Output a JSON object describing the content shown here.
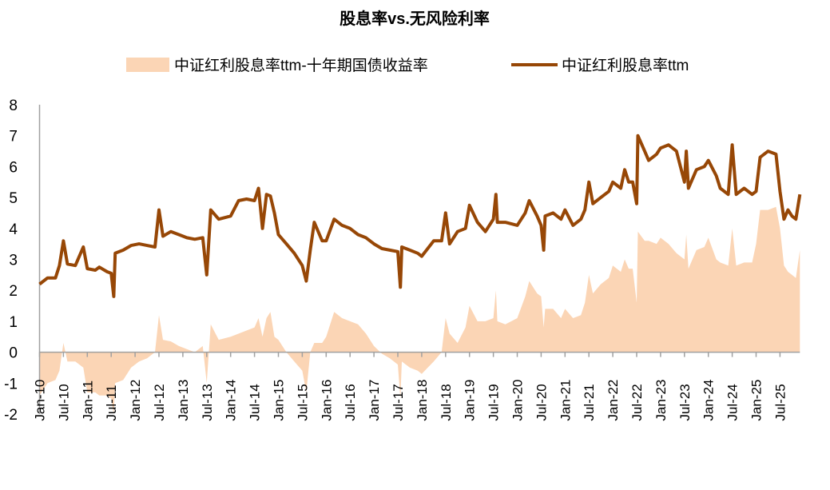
{
  "chart_data": {
    "type": "line",
    "title": "股息率vs.无风险利率",
    "legend_position": "top",
    "grid": false,
    "ylim": [
      -2,
      8
    ],
    "yticks": [
      "-2",
      "-1",
      "0",
      "1",
      "2",
      "3",
      "4",
      "5",
      "6",
      "7",
      "8"
    ],
    "xticks": [
      "Jan-10",
      "Jul-10",
      "Jan-11",
      "Jul-11",
      "Jan-12",
      "Jul-12",
      "Jan-13",
      "Jul-13",
      "Jan-14",
      "Jul-14",
      "Jan-15",
      "Jul-15",
      "Jan-16",
      "Jul-16",
      "Jan-17",
      "Jul-17",
      "Jan-18",
      "Jul-18",
      "Jan-19",
      "Jul-19",
      "Jan-20",
      "Jul-20",
      "Jan-21",
      "Jul-21",
      "Jan-22",
      "Jul-22",
      "Jan-23",
      "Jul-23",
      "Jan-24",
      "Jul-24",
      "Jan-25",
      "Jul-25"
    ],
    "colors": {
      "area": "#fbd5b5",
      "line": "#974706",
      "axis": "#a0a0a0"
    },
    "series": [
      {
        "name": "中证红利股息率ttm-十年期国债收益率",
        "type": "area",
        "key": "spread"
      },
      {
        "name": "中证红利股息率ttm",
        "type": "line",
        "key": "yield"
      }
    ],
    "points": [
      [
        "2010-01",
        2.2,
        -1.4
      ],
      [
        "2010-03",
        2.4,
        -1.0
      ],
      [
        "2010-05",
        2.4,
        -0.9
      ],
      [
        "2010-06",
        2.8,
        -0.6
      ],
      [
        "2010-07",
        3.6,
        0.3
      ],
      [
        "2010-08",
        2.85,
        -0.3
      ],
      [
        "2010-10",
        2.8,
        -0.3
      ],
      [
        "2010-12",
        3.4,
        -0.5
      ],
      [
        "2011-01",
        2.7,
        -1.3
      ],
      [
        "2011-03",
        2.65,
        -1.3
      ],
      [
        "2011-04",
        2.75,
        -1.4
      ],
      [
        "2011-06",
        2.6,
        -1.4
      ],
      [
        "2011-07",
        2.55,
        -1.5
      ],
      [
        "2011-07-20",
        1.8,
        -2.0
      ],
      [
        "2011-08",
        3.2,
        -1.0
      ],
      [
        "2011-10",
        3.3,
        -0.9
      ],
      [
        "2011-12",
        3.45,
        -0.5
      ],
      [
        "2012-02",
        3.5,
        -0.3
      ],
      [
        "2012-04",
        3.45,
        -0.2
      ],
      [
        "2012-06",
        3.4,
        0.0
      ],
      [
        "2012-07",
        4.6,
        1.2
      ],
      [
        "2012-08",
        3.75,
        0.4
      ],
      [
        "2012-10",
        3.9,
        0.35
      ],
      [
        "2012-12",
        3.8,
        0.2
      ],
      [
        "2013-02",
        3.7,
        0.1
      ],
      [
        "2013-04",
        3.65,
        0.0
      ],
      [
        "2013-06",
        3.7,
        0.2
      ],
      [
        "2013-07",
        2.5,
        -1.0
      ],
      [
        "2013-08",
        4.6,
        0.9
      ],
      [
        "2013-10",
        4.3,
        0.4
      ],
      [
        "2014-01",
        4.4,
        0.5
      ],
      [
        "2014-03",
        4.9,
        0.6
      ],
      [
        "2014-05",
        4.95,
        0.7
      ],
      [
        "2014-07",
        4.9,
        0.8
      ],
      [
        "2014-08",
        5.3,
        1.1
      ],
      [
        "2014-09",
        4.0,
        0.5
      ],
      [
        "2014-10",
        5.1,
        1.1
      ],
      [
        "2014-11",
        5.05,
        1.3
      ],
      [
        "2014-12",
        4.5,
        0.5
      ],
      [
        "2015-01",
        3.8,
        0.4
      ],
      [
        "2015-03",
        3.5,
        0.0
      ],
      [
        "2015-05",
        3.2,
        -0.3
      ],
      [
        "2015-07",
        2.8,
        -0.6
      ],
      [
        "2015-08",
        2.3,
        -1.3
      ],
      [
        "2015-09",
        3.3,
        0.0
      ],
      [
        "2015-10",
        4.2,
        0.3
      ],
      [
        "2015-12",
        3.6,
        0.3
      ],
      [
        "2016-01",
        3.6,
        0.5
      ],
      [
        "2016-03",
        4.3,
        1.3
      ],
      [
        "2016-05",
        4.1,
        1.1
      ],
      [
        "2016-07",
        4.0,
        1.0
      ],
      [
        "2016-09",
        3.8,
        0.9
      ],
      [
        "2016-11",
        3.7,
        0.6
      ],
      [
        "2017-01",
        3.5,
        0.2
      ],
      [
        "2017-03",
        3.35,
        -0.05
      ],
      [
        "2017-05",
        3.3,
        -0.2
      ],
      [
        "2017-07",
        3.25,
        -0.4
      ],
      [
        "2017-07-20",
        2.1,
        -1.5
      ],
      [
        "2017-08",
        3.4,
        -0.3
      ],
      [
        "2017-10",
        3.3,
        -0.5
      ],
      [
        "2017-12",
        3.2,
        -0.6
      ],
      [
        "2018-01",
        3.1,
        -0.7
      ],
      [
        "2018-04",
        3.6,
        -0.3
      ],
      [
        "2018-06",
        3.6,
        0.0
      ],
      [
        "2018-07",
        4.5,
        1.1
      ],
      [
        "2018-08",
        3.5,
        0.6
      ],
      [
        "2018-10",
        3.9,
        0.3
      ],
      [
        "2018-12",
        4.0,
        0.8
      ],
      [
        "2019-01",
        4.75,
        1.5
      ],
      [
        "2019-03",
        4.2,
        1.0
      ],
      [
        "2019-05",
        3.9,
        1.0
      ],
      [
        "2019-07",
        4.3,
        1.1
      ],
      [
        "2019-07-20",
        5.1,
        2.0
      ],
      [
        "2019-08",
        4.2,
        1.0
      ],
      [
        "2019-10",
        4.2,
        0.9
      ],
      [
        "2020-01",
        4.1,
        1.1
      ],
      [
        "2020-03",
        4.5,
        1.8
      ],
      [
        "2020-04",
        4.9,
        2.3
      ],
      [
        "2020-06",
        4.4,
        1.9
      ],
      [
        "2020-07",
        4.1,
        1.8
      ],
      [
        "2020-07-20",
        3.3,
        0.8
      ],
      [
        "2020-08",
        4.4,
        1.4
      ],
      [
        "2020-10",
        4.5,
        1.4
      ],
      [
        "2020-12",
        4.3,
        1.1
      ],
      [
        "2021-01",
        4.6,
        1.4
      ],
      [
        "2021-03",
        4.1,
        1.1
      ],
      [
        "2021-05",
        4.3,
        1.2
      ],
      [
        "2021-06",
        4.6,
        1.6
      ],
      [
        "2021-07",
        5.5,
        2.5
      ],
      [
        "2021-08",
        4.8,
        1.9
      ],
      [
        "2021-10",
        5.0,
        2.2
      ],
      [
        "2021-12",
        5.2,
        2.4
      ],
      [
        "2022-01",
        5.5,
        2.8
      ],
      [
        "2022-03",
        5.3,
        2.6
      ],
      [
        "2022-04",
        5.9,
        3.0
      ],
      [
        "2022-05",
        5.5,
        2.7
      ],
      [
        "2022-06",
        5.5,
        2.7
      ],
      [
        "2022-07",
        4.8,
        1.6
      ],
      [
        "2022-07-10",
        7.0,
        3.9
      ],
      [
        "2022-09",
        6.5,
        3.6
      ],
      [
        "2022-10",
        6.2,
        3.6
      ],
      [
        "2022-12",
        6.4,
        3.5
      ],
      [
        "2023-01",
        6.6,
        3.7
      ],
      [
        "2023-03",
        6.7,
        3.5
      ],
      [
        "2023-05",
        6.5,
        3.2
      ],
      [
        "2023-07",
        5.5,
        3.0
      ],
      [
        "2023-07-15",
        6.5,
        3.8
      ],
      [
        "2023-08",
        5.3,
        2.7
      ],
      [
        "2023-10",
        5.9,
        3.3
      ],
      [
        "2023-12",
        6.0,
        3.4
      ],
      [
        "2024-01",
        6.2,
        3.7
      ],
      [
        "2024-03",
        5.7,
        3.0
      ],
      [
        "2024-04",
        5.3,
        2.9
      ],
      [
        "2024-06",
        5.1,
        2.8
      ],
      [
        "2024-07",
        6.7,
        4.0
      ],
      [
        "2024-08",
        5.1,
        2.8
      ],
      [
        "2024-10",
        5.3,
        2.9
      ],
      [
        "2024-12",
        5.1,
        2.9
      ],
      [
        "2025-01",
        5.2,
        3.5
      ],
      [
        "2025-02",
        6.3,
        4.6
      ],
      [
        "2025-04",
        6.5,
        4.6
      ],
      [
        "2025-06",
        6.4,
        4.7
      ],
      [
        "2025-07",
        5.2,
        4.0
      ],
      [
        "2025-08",
        4.3,
        2.8
      ],
      [
        "2025-09",
        4.6,
        2.6
      ],
      [
        "2025-10",
        4.4,
        2.5
      ],
      [
        "2025-11",
        4.3,
        2.4
      ],
      [
        "2025-12",
        5.1,
        3.3
      ]
    ]
  }
}
